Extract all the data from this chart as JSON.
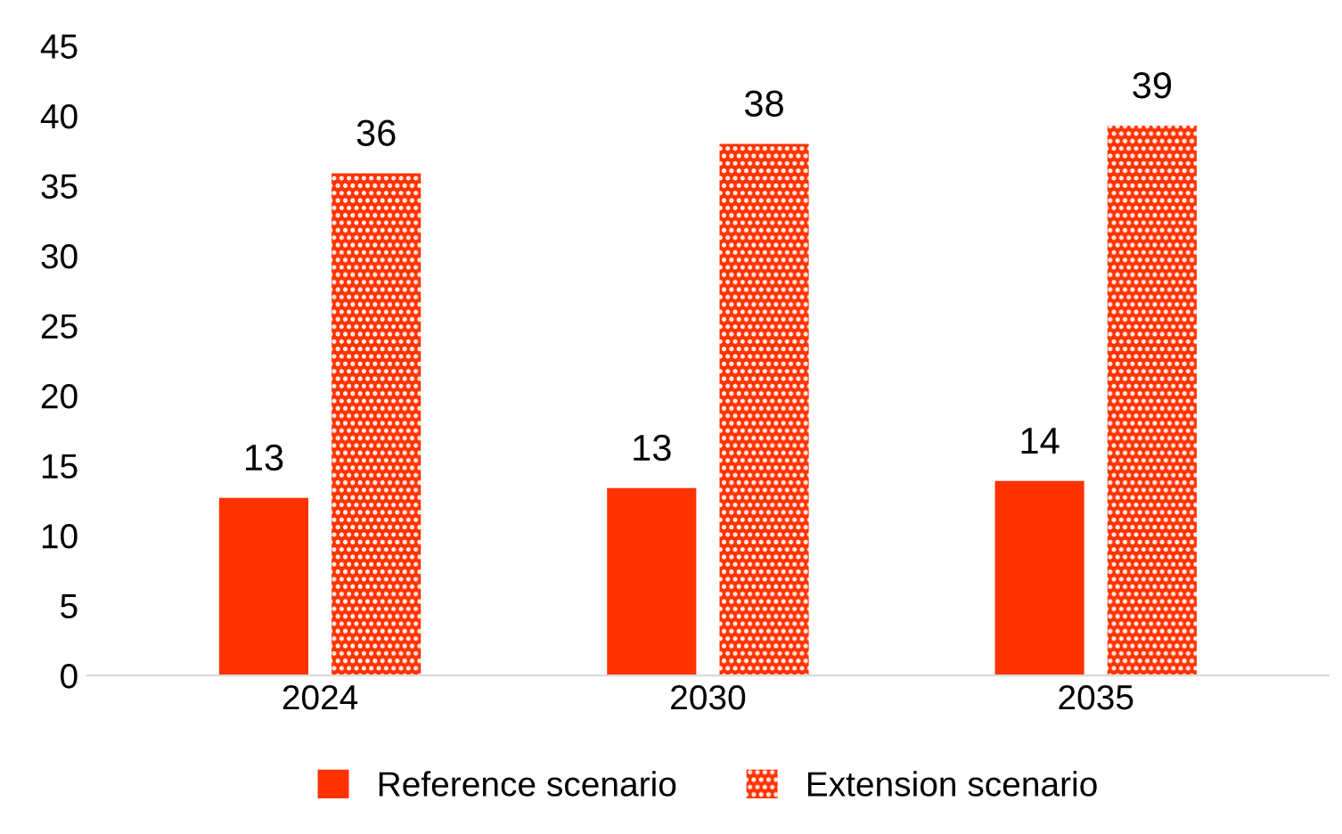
{
  "chart_data": {
    "type": "bar",
    "categories": [
      "2024",
      "2030",
      "2035"
    ],
    "series": [
      {
        "name": "Reference scenario",
        "color": "#ff3300",
        "values": [
          12.7,
          13.4,
          13.9
        ],
        "value_labels": [
          "13",
          "13",
          "14"
        ]
      },
      {
        "name": "Extension scenario",
        "color": "#ff3300",
        "values": [
          35.9,
          38.0,
          39.3
        ],
        "value_labels": [
          "36",
          "38",
          "39"
        ]
      }
    ],
    "ylim": [
      0,
      45
    ],
    "yticks": [
      0,
      5,
      10,
      15,
      20,
      25,
      30,
      35,
      40,
      45
    ],
    "grid": false,
    "legend": "bottom"
  }
}
